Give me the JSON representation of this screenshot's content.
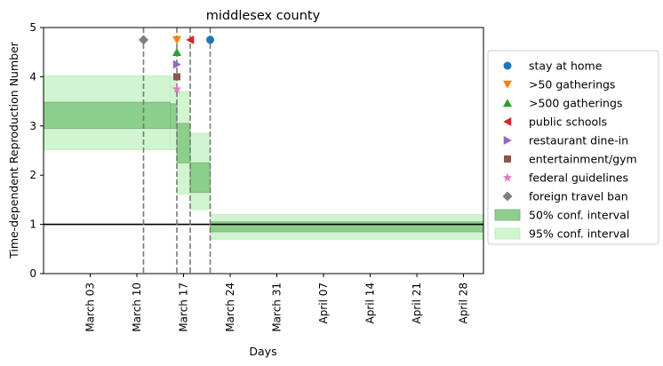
{
  "chart_data": {
    "type": "step-band",
    "title": "middlesex county",
    "xlabel": "Days",
    "ylabel": "Time-dependent Reproduction Number",
    "ylim": [
      0,
      5
    ],
    "xlim": [
      "2020-02-25",
      "2020-05-01"
    ],
    "x_ticks": [
      {
        "date": "2020-03-03",
        "label": "March 03"
      },
      {
        "date": "2020-03-10",
        "label": "March 10"
      },
      {
        "date": "2020-03-17",
        "label": "March 17"
      },
      {
        "date": "2020-03-24",
        "label": "March 24"
      },
      {
        "date": "2020-03-31",
        "label": "March 31"
      },
      {
        "date": "2020-04-07",
        "label": "April 07"
      },
      {
        "date": "2020-04-14",
        "label": "April 14"
      },
      {
        "date": "2020-04-21",
        "label": "April 21"
      },
      {
        "date": "2020-04-28",
        "label": "April 28"
      }
    ],
    "y_ticks": [
      0,
      1,
      2,
      3,
      4,
      5
    ],
    "reference_line": 1,
    "segments": [
      {
        "start": "2020-02-25",
        "end": "2020-03-15",
        "ci95": [
          2.52,
          4.02
        ],
        "ci50": [
          2.95,
          3.48
        ]
      },
      {
        "start": "2020-03-15",
        "end": "2020-03-16",
        "ci95": [
          2.52,
          4.0
        ],
        "ci50": [
          2.95,
          3.45
        ]
      },
      {
        "start": "2020-03-16",
        "end": "2020-03-18",
        "ci95": [
          1.62,
          3.7
        ],
        "ci50": [
          2.25,
          3.05
        ]
      },
      {
        "start": "2020-03-18",
        "end": "2020-03-21",
        "ci95": [
          1.3,
          2.85
        ],
        "ci50": [
          1.65,
          2.25
        ]
      },
      {
        "start": "2020-03-21",
        "end": "2020-05-01",
        "ci95": [
          0.7,
          1.2
        ],
        "ci50": [
          0.85,
          1.05
        ]
      }
    ],
    "interventions": [
      {
        "name": "stay at home",
        "date": "2020-03-21",
        "y": 4.75,
        "marker": "circle",
        "color": "#1f77b4"
      },
      {
        "name": ">50 gatherings",
        "date": "2020-03-16",
        "y": 4.75,
        "marker": "triangle-down",
        "color": "#ff7f0e"
      },
      {
        "name": ">500 gatherings",
        "date": "2020-03-16",
        "y": 4.5,
        "marker": "triangle-up",
        "color": "#2ca02c"
      },
      {
        "name": "public schools",
        "date": "2020-03-18",
        "y": 4.75,
        "marker": "triangle-left",
        "color": "#d62728"
      },
      {
        "name": "restaurant dine-in",
        "date": "2020-03-16",
        "y": 4.25,
        "marker": "triangle-right",
        "color": "#9467bd"
      },
      {
        "name": "entertainment/gym",
        "date": "2020-03-16",
        "y": 4.0,
        "marker": "square",
        "color": "#8c564b"
      },
      {
        "name": "federal guidelines",
        "date": "2020-03-16",
        "y": 3.75,
        "marker": "star",
        "color": "#e377c2"
      },
      {
        "name": "foreign travel ban",
        "date": "2020-03-11",
        "y": 4.75,
        "marker": "diamond",
        "color": "#7f7f7f"
      }
    ],
    "vertical_lines": [
      "2020-03-11",
      "2020-03-16",
      "2020-03-18",
      "2020-03-21"
    ],
    "bands": [
      {
        "name": "50% conf. interval",
        "fill": "#8ccf8c",
        "edge": "#7fb87f"
      },
      {
        "name": "95% conf. interval",
        "fill": "#d0f5d0",
        "edge": "#c2eec2"
      }
    ],
    "legend_position": "right"
  }
}
